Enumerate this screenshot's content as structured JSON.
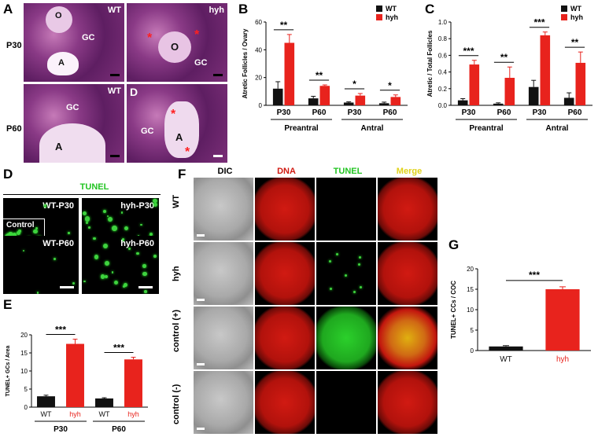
{
  "panels": {
    "A": {
      "label": "A",
      "row_labels": [
        "P30",
        "P60"
      ],
      "tiles": [
        {
          "tag": "WT",
          "marks": [
            "O",
            "GC",
            "A"
          ]
        },
        {
          "tag": "hyh",
          "marks": [
            "O",
            "GC"
          ]
        },
        {
          "tag": "WT",
          "marks": [
            "GC",
            "A"
          ]
        },
        {
          "tag": "",
          "marks": [
            "D",
            "GC",
            "A"
          ]
        }
      ]
    },
    "B": {
      "label": "B"
    },
    "C": {
      "label": "C"
    },
    "D": {
      "label": "D",
      "title": "TUNEL",
      "tiles": [
        "WT-P30",
        "hyh-P30",
        "WT-P60",
        "hyh-P60"
      ],
      "inset": "Control"
    },
    "E": {
      "label": "E"
    },
    "F": {
      "label": "F",
      "columns": [
        "DIC",
        "DNA",
        "TUNEL",
        "Merge"
      ],
      "rows": [
        "WT",
        "hyh",
        "control (+)",
        "control (-)"
      ]
    },
    "G": {
      "label": "G"
    }
  },
  "colors": {
    "wt": "#111111",
    "hyh": "#e8231d",
    "dna": "#d11a12",
    "tunel": "#22c422",
    "merge": "#e0d21a"
  },
  "chart_data": [
    {
      "panel": "B",
      "type": "bar",
      "ylabel": "Atretic Follicles / Ovary",
      "ylim": [
        0,
        60
      ],
      "yticks": [
        0,
        20,
        40,
        60
      ],
      "categories": [
        "P30",
        "P60",
        "P30",
        "P60"
      ],
      "groups": [
        {
          "name": "Preantral",
          "categories": [
            "P30",
            "P60"
          ]
        },
        {
          "name": "Antral",
          "categories": [
            "P30",
            "P60"
          ]
        }
      ],
      "series": [
        {
          "name": "WT",
          "values": [
            12,
            5,
            2,
            1.5
          ],
          "errors": [
            5,
            1.5,
            0.5,
            0.8
          ]
        },
        {
          "name": "hyh",
          "values": [
            45,
            14,
            7,
            6
          ],
          "errors": [
            6,
            0.7,
            1.5,
            1.5
          ]
        }
      ],
      "significance": [
        "**",
        "**",
        "*",
        "*"
      ],
      "legend": "top-right"
    },
    {
      "panel": "C",
      "type": "bar",
      "ylabel": "Atretic / Total Follicles",
      "ylim": [
        0,
        1.0
      ],
      "yticks": [
        0.0,
        0.2,
        0.4,
        0.6,
        0.8,
        1.0
      ],
      "categories": [
        "P30",
        "P60",
        "P30",
        "P60"
      ],
      "groups": [
        {
          "name": "Preantral",
          "categories": [
            "P30",
            "P60"
          ]
        },
        {
          "name": "Antral",
          "categories": [
            "P30",
            "P60"
          ]
        }
      ],
      "series": [
        {
          "name": "WT",
          "values": [
            0.06,
            0.02,
            0.22,
            0.09
          ],
          "errors": [
            0.02,
            0.01,
            0.08,
            0.06
          ]
        },
        {
          "name": "hyh",
          "values": [
            0.49,
            0.33,
            0.84,
            0.51
          ],
          "errors": [
            0.05,
            0.13,
            0.04,
            0.13
          ]
        }
      ],
      "significance": [
        "***",
        "**",
        "***",
        "**"
      ],
      "legend": "top-right"
    },
    {
      "panel": "E",
      "type": "bar",
      "ylabel": "TUNEL+ GCs / Area",
      "ylim": [
        0,
        20
      ],
      "yticks": [
        0,
        5,
        10,
        15,
        20
      ],
      "categories": [
        "WT",
        "hyh",
        "WT",
        "hyh"
      ],
      "groups": [
        {
          "name": "P30",
          "categories": [
            "WT",
            "hyh"
          ]
        },
        {
          "name": "P60",
          "categories": [
            "WT",
            "hyh"
          ]
        }
      ],
      "values": [
        3.0,
        17.5,
        2.4,
        13.2
      ],
      "errors": [
        0.3,
        1.3,
        0.2,
        0.6
      ],
      "significance": [
        "***",
        "***"
      ]
    },
    {
      "panel": "G",
      "type": "bar",
      "ylabel": "TUNEL+ CCs / COC",
      "ylim": [
        0,
        20
      ],
      "yticks": [
        0,
        5,
        10,
        15,
        20
      ],
      "categories": [
        "WT",
        "hyh"
      ],
      "values": [
        1.0,
        15.0
      ],
      "errors": [
        0.2,
        0.6
      ],
      "significance": [
        "***"
      ]
    }
  ]
}
